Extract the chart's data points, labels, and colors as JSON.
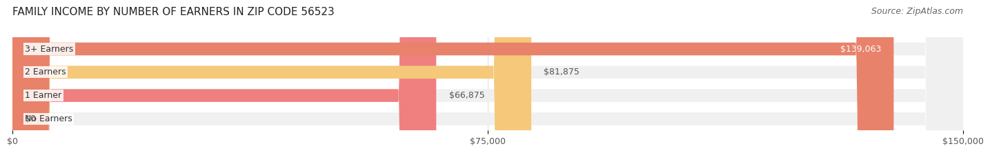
{
  "title": "FAMILY INCOME BY NUMBER OF EARNERS IN ZIP CODE 56523",
  "source": "Source: ZipAtlas.com",
  "categories": [
    "No Earners",
    "1 Earner",
    "2 Earners",
    "3+ Earners"
  ],
  "values": [
    0,
    66875,
    81875,
    139063
  ],
  "bar_colors": [
    "#a8a8d8",
    "#f08080",
    "#f5c87a",
    "#e8826a"
  ],
  "bar_bg_color": "#f0f0f0",
  "value_labels": [
    "$0",
    "$66,875",
    "$81,875",
    "$139,063"
  ],
  "x_tick_labels": [
    "$0",
    "$75,000",
    "$150,000"
  ],
  "x_tick_values": [
    0,
    75000,
    150000
  ],
  "xlim": [
    0,
    150000
  ],
  "background_color": "#ffffff",
  "title_fontsize": 11,
  "source_fontsize": 9,
  "label_fontsize": 9,
  "tick_fontsize": 9,
  "bar_label_color_light": "#ffffff",
  "bar_label_color_dark": "#555555"
}
